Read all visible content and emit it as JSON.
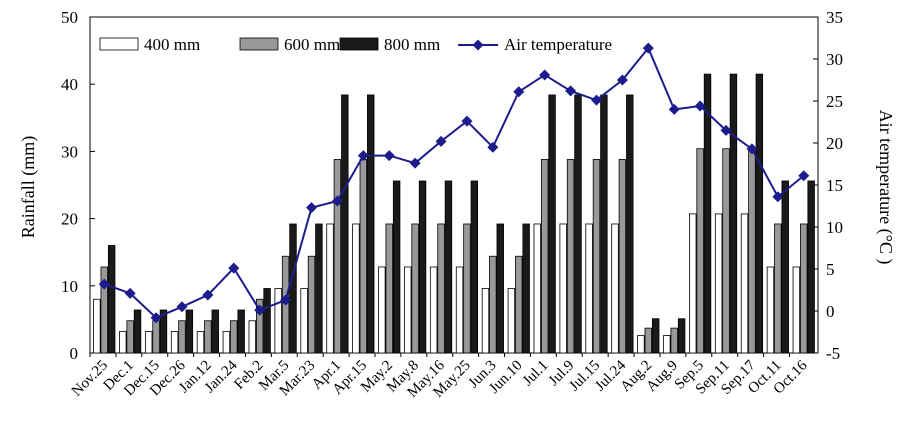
{
  "chart_data": {
    "type": "bar",
    "categories": [
      "Nov.25",
      "Dec.1",
      "Dec.15",
      "Dec.26",
      "Jan.12",
      "Jan.24",
      "Feb.2",
      "Mar.5",
      "Mar.23",
      "Apr.1",
      "Apr.15",
      "May.2",
      "May.8",
      "May.16",
      "May.25",
      "Jun.3",
      "Jun.10",
      "Jul.1",
      "Jul.9",
      "Jul.15",
      "Jul.24",
      "Aug.2",
      "Aug.9",
      "Sep.5",
      "Sep.11",
      "Sep.17",
      "Oct.11",
      "Oct.16"
    ],
    "series": [
      {
        "name": "400 mm",
        "kind": "bar",
        "axis": "left",
        "color": "#ffffff",
        "values": [
          8,
          3.2,
          3.2,
          3.2,
          3.2,
          3.2,
          4.8,
          9.6,
          9.6,
          19.2,
          19.2,
          12.8,
          12.8,
          12.8,
          12.8,
          9.6,
          9.6,
          19.2,
          19.2,
          19.2,
          19.2,
          2.6,
          2.6,
          20.7,
          20.7,
          20.7,
          12.8,
          12.8
        ]
      },
      {
        "name": "600 mm",
        "kind": "bar",
        "axis": "left",
        "color": "#999999",
        "values": [
          12.8,
          4.8,
          4.8,
          4.8,
          4.8,
          4.8,
          8,
          14.4,
          14.4,
          28.8,
          28.8,
          19.2,
          19.2,
          19.2,
          19.2,
          14.4,
          14.4,
          28.8,
          28.8,
          28.8,
          28.8,
          3.7,
          3.7,
          30.4,
          30.4,
          30.4,
          19.2,
          19.2
        ]
      },
      {
        "name": "800 mm",
        "kind": "bar",
        "axis": "left",
        "color": "#1a1a1a",
        "values": [
          16,
          6.4,
          6.4,
          6.4,
          6.4,
          6.4,
          9.6,
          19.2,
          19.2,
          38.4,
          38.4,
          25.6,
          25.6,
          25.6,
          25.6,
          19.2,
          19.2,
          38.4,
          38.4,
          38.4,
          38.4,
          5.1,
          5.1,
          41.5,
          41.5,
          41.5,
          25.6,
          25.6
        ]
      },
      {
        "name": "Air temperature",
        "kind": "line",
        "axis": "right",
        "color": "#1c1c8c",
        "values": [
          3.2,
          2.1,
          -0.8,
          0.5,
          1.9,
          5.1,
          0.1,
          1.3,
          12.3,
          13.1,
          18.5,
          18.5,
          17.6,
          20.2,
          22.6,
          19.5,
          26.1,
          28.1,
          26.2,
          25.1,
          27.5,
          31.3,
          24,
          24.4,
          21.5,
          19.3,
          13.6,
          16.1
        ]
      }
    ],
    "y_left": {
      "label": "Rainfall (mm)",
      "ylim": [
        0,
        50
      ],
      "ticks": [
        "0",
        "10",
        "20",
        "30",
        "40",
        "50"
      ]
    },
    "y_right": {
      "label": "Air temperature (°C )",
      "ylim": [
        -5,
        35
      ],
      "ticks": [
        "-5",
        "0",
        "5",
        "10",
        "15",
        "20",
        "25",
        "30",
        "35"
      ]
    },
    "legend": {
      "placement": "top-left",
      "items": [
        "400 mm",
        "600 mm",
        "800 mm",
        "Air temperature"
      ]
    },
    "grid": false
  }
}
